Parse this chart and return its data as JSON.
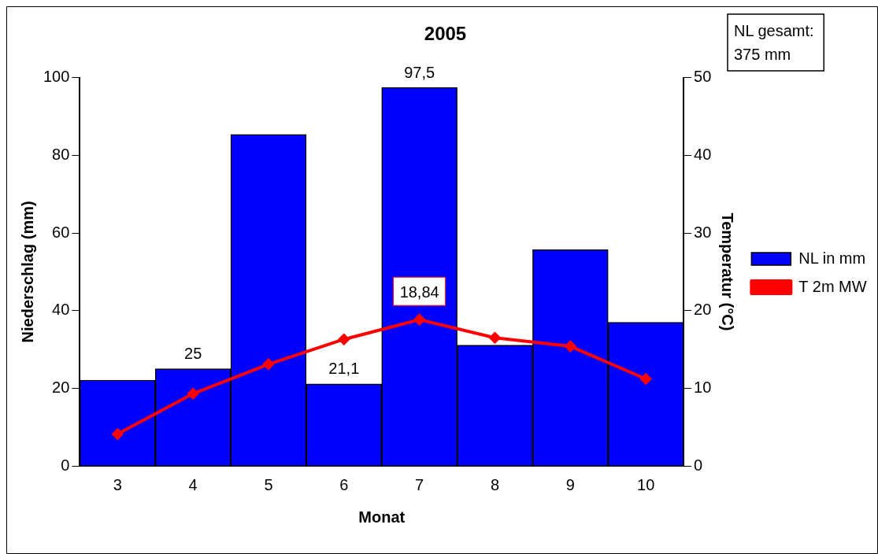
{
  "chart_data": {
    "type": "bar",
    "title": "2005",
    "xlabel": "Monat",
    "ylabel": "Niederschlag (mm)",
    "y2label": "Temperatur (°C)",
    "categories": [
      "3",
      "4",
      "5",
      "6",
      "7",
      "8",
      "9",
      "10"
    ],
    "series": [
      {
        "name": "NL in mm",
        "color": "#0000ff",
        "values": [
          22.1,
          25,
          85.4,
          21.1,
          97.5,
          31.1,
          55.7,
          37.0
        ],
        "value_labels": [
          null,
          "25",
          null,
          "21,1",
          "97,5",
          null,
          null,
          null
        ]
      },
      {
        "name": "T 2m MW",
        "type": "line",
        "axis": "y2",
        "color": "#ff0000",
        "marker": "diamond",
        "values": [
          4.1,
          9.3,
          13.1,
          16.3,
          18.84,
          16.5,
          15.4,
          11.2
        ],
        "value_labels": [
          null,
          null,
          null,
          null,
          "18,84",
          null,
          null,
          null
        ]
      }
    ],
    "ylim": [
      0,
      100
    ],
    "yticks": [
      0,
      20,
      40,
      60,
      80,
      100
    ],
    "y2lim": [
      0,
      50
    ],
    "y2ticks": [
      0,
      10,
      20,
      30,
      40,
      50
    ],
    "grid": false,
    "legend": "right",
    "annotations": [
      "NL gesamt:",
      "375 mm"
    ]
  }
}
